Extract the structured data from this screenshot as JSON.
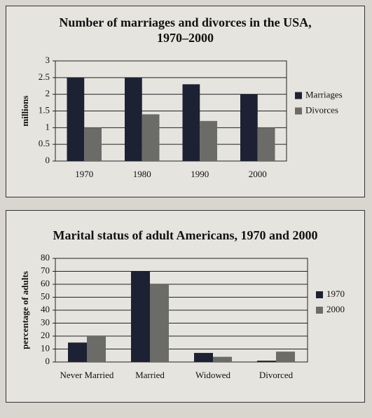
{
  "chart_data": [
    {
      "type": "bar",
      "title": "Number of marriages and divorces in the USA, 1970–2000",
      "y_label": "millions",
      "categories": [
        "1970",
        "1980",
        "1990",
        "2000"
      ],
      "series": [
        {
          "name": "Marriages",
          "color": "#1c2233",
          "values": [
            2.5,
            2.5,
            2.3,
            2.0
          ]
        },
        {
          "name": "Divorces",
          "color": "#6b6b68",
          "values": [
            1.0,
            1.4,
            1.2,
            1.0
          ]
        }
      ],
      "ylim": [
        0,
        3
      ],
      "yticks": [
        0,
        0.5,
        1,
        1.5,
        2,
        2.5,
        3
      ],
      "grid": true,
      "legend": "right"
    },
    {
      "type": "bar",
      "title": "Marital status of adult Americans, 1970 and 2000",
      "y_label": "percentage of adults",
      "categories": [
        "Never Married",
        "Married",
        "Widowed",
        "Divorced"
      ],
      "series": [
        {
          "name": "1970",
          "color": "#1c2233",
          "values": [
            15,
            70,
            7,
            1
          ]
        },
        {
          "name": "2000",
          "color": "#6b6b68",
          "values": [
            20,
            60,
            4,
            8
          ]
        }
      ],
      "ylim": [
        0,
        80
      ],
      "yticks": [
        0,
        10,
        20,
        30,
        40,
        50,
        60,
        70,
        80
      ],
      "grid": true,
      "legend": "right"
    }
  ]
}
